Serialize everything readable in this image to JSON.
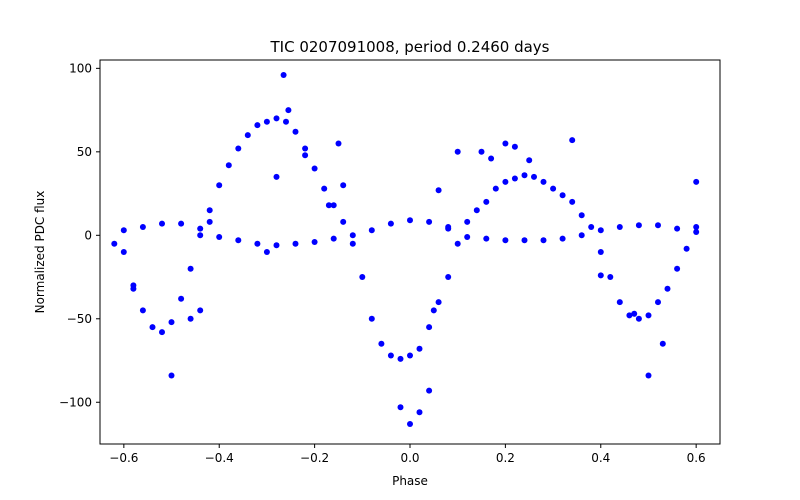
{
  "chart_data": {
    "type": "scatter",
    "title": "TIC 0207091008, period 0.2460 days",
    "xlabel": "Phase",
    "ylabel": "Normalized PDC flux",
    "xlim": [
      -0.65,
      0.65
    ],
    "ylim": [
      -125,
      105
    ],
    "xticks": [
      -0.6,
      -0.4,
      -0.2,
      0.0,
      0.2,
      0.4,
      0.6
    ],
    "xtick_labels": [
      "−0.6",
      "−0.4",
      "−0.2",
      "0.0",
      "0.2",
      "0.4",
      "0.6"
    ],
    "yticks": [
      -100,
      -50,
      0,
      50,
      100
    ],
    "ytick_labels": [
      "−100",
      "−50",
      "0",
      "50",
      "100"
    ],
    "grid": false,
    "legend": "none",
    "marker_color": "#0000ff",
    "series": [
      {
        "x": [
          -0.6,
          -0.58,
          -0.56,
          -0.54,
          -0.52,
          -0.5,
          -0.48,
          -0.46,
          -0.44,
          -0.42,
          -0.4,
          -0.38,
          -0.36,
          -0.34,
          -0.32,
          -0.3,
          -0.28,
          -0.26,
          -0.24,
          -0.22,
          -0.2,
          -0.18,
          -0.16,
          -0.14,
          -0.12,
          -0.1,
          -0.08,
          -0.06,
          -0.04,
          -0.02,
          0.0,
          0.02,
          0.04,
          0.06,
          0.08,
          0.1,
          0.12,
          0.14,
          0.16,
          0.18,
          0.2,
          0.22,
          0.24,
          0.26,
          0.28,
          0.3,
          0.32,
          0.34,
          0.36,
          0.38,
          0.4,
          0.42,
          0.44,
          0.46,
          0.48,
          0.5,
          0.52,
          0.54,
          0.56,
          0.58,
          0.6
        ],
        "y": [
          -10,
          -30,
          -45,
          -55,
          -58,
          -52,
          -38,
          -20,
          0,
          15,
          30,
          42,
          52,
          60,
          66,
          68,
          70,
          68,
          62,
          52,
          40,
          28,
          18,
          8,
          -5,
          -25,
          -50,
          -65,
          -72,
          -74,
          -72,
          -68,
          -55,
          -40,
          -25,
          -5,
          8,
          15,
          20,
          28,
          32,
          34,
          36,
          35,
          32,
          28,
          24,
          20,
          12,
          5,
          -10,
          -25,
          -40,
          -48,
          -50,
          -48,
          -40,
          -32,
          -20,
          -8,
          5
        ]
      },
      {
        "x": [
          -0.6,
          -0.56,
          -0.52,
          -0.48,
          -0.44,
          -0.4,
          -0.36,
          -0.32,
          -0.28,
          -0.24,
          -0.2,
          -0.16,
          -0.12,
          -0.08,
          -0.04,
          0.0,
          0.04,
          0.08,
          0.12,
          0.16,
          0.2,
          0.24,
          0.28,
          0.32,
          0.36,
          0.4,
          0.44,
          0.48,
          0.52,
          0.56,
          0.6
        ],
        "y": [
          3,
          5,
          7,
          7,
          4,
          -1,
          -3,
          -5,
          -6,
          -5,
          -4,
          -2,
          0,
          3,
          7,
          9,
          8,
          4,
          -1,
          -2,
          -3,
          -3,
          -3,
          -2,
          0,
          3,
          5,
          6,
          6,
          4,
          2
        ]
      },
      {
        "x": [
          -0.5,
          -0.46,
          -0.44,
          -0.42,
          -0.3,
          -0.28,
          -0.265,
          -0.255,
          -0.22,
          -0.17,
          -0.15,
          -0.14,
          -0.02,
          0.0,
          0.02,
          0.04,
          0.05,
          0.06,
          0.08,
          0.1,
          0.15,
          0.17,
          0.2,
          0.22,
          0.25,
          0.34,
          0.4,
          0.47,
          0.5,
          0.53,
          0.6,
          -0.58,
          -0.62
        ],
        "y": [
          -84,
          -50,
          -45,
          8,
          -10,
          35,
          96,
          75,
          48,
          18,
          55,
          30,
          -103,
          -113,
          -106,
          -93,
          -45,
          27,
          5,
          50,
          50,
          46,
          55,
          53,
          45,
          57,
          -24,
          -47,
          -84,
          -65,
          32,
          -32,
          -5
        ]
      }
    ]
  }
}
